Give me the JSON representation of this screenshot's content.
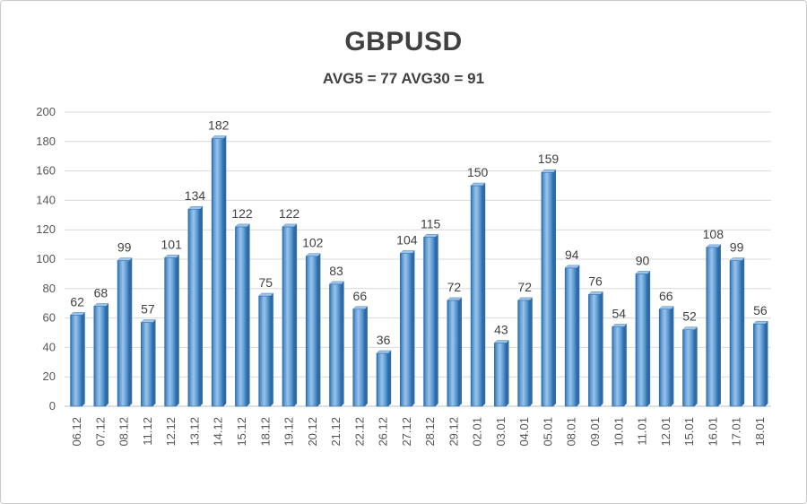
{
  "chart_data": {
    "type": "bar",
    "title": "GBPUSD",
    "subtitle": "AVG5 = 77 AVG30 = 91",
    "xlabel": "",
    "ylabel": "",
    "ylim": [
      0,
      200
    ],
    "yticks": [
      0,
      20,
      40,
      60,
      80,
      100,
      120,
      140,
      160,
      180,
      200
    ],
    "grid": true,
    "legend": "none",
    "categories": [
      "06.12",
      "07.12",
      "08.12",
      "11.12",
      "12.12",
      "13.12",
      "14.12",
      "15.12",
      "18.12",
      "19.12",
      "20.12",
      "21.12",
      "22.12",
      "26.12",
      "27.12",
      "28.12",
      "29.12",
      "02.01",
      "03.01",
      "04.01",
      "05.01",
      "08.01",
      "09.01",
      "10.01",
      "11.01",
      "12.01",
      "15.01",
      "16.01",
      "17.01",
      "18.01"
    ],
    "values": [
      62,
      68,
      99,
      57,
      101,
      134,
      182,
      122,
      75,
      122,
      102,
      83,
      66,
      36,
      104,
      115,
      72,
      150,
      43,
      72,
      159,
      94,
      76,
      54,
      90,
      66,
      52,
      108,
      99,
      56
    ],
    "colors": {
      "bar_light": "#9cc3e8",
      "bar_mid": "#5b9bd5",
      "bar_dark": "#2e6aa6",
      "grid": "#d9d9d9",
      "axis": "#bfbfbf"
    }
  }
}
